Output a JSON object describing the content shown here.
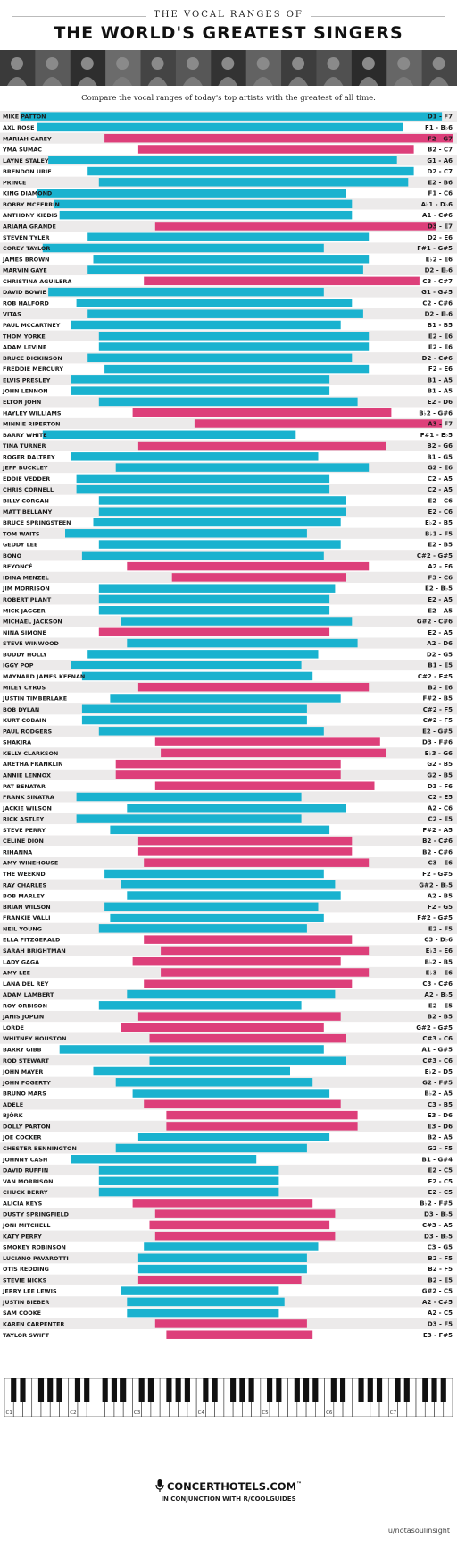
{
  "header": {
    "pre_title": "THE VOCAL RANGES OF",
    "title": "THE WORLD'S GREATEST SINGERS",
    "subtitle": "Compare the vocal ranges of today's top artists with the greatest of all time."
  },
  "colors": {
    "male": "#1ab2cf",
    "female": "#dd3f7a",
    "row_odd": "#eceaea",
    "row_even": "#ffffff",
    "text": "#1a1a1a"
  },
  "chart_data": {
    "type": "range-bar",
    "axis": {
      "min": "C1",
      "max": "C8",
      "octave_labels": [
        "C1",
        "C2",
        "C3",
        "C4",
        "C5",
        "C6",
        "C7"
      ]
    },
    "series": [
      {
        "name": "male",
        "color": "#1ab2cf"
      },
      {
        "name": "female",
        "color": "#dd3f7a"
      }
    ],
    "singers": [
      {
        "name": "MIKE PATTON",
        "low": "D1",
        "high": "F7",
        "low_semi": 2,
        "high_semi": 77,
        "sex": "male"
      },
      {
        "name": "AXL ROSE",
        "low": "F1",
        "high": "B♭6",
        "low_semi": 5,
        "high_semi": 70,
        "sex": "male"
      },
      {
        "name": "MARIAH CAREY",
        "low": "F2",
        "high": "G7",
        "low_semi": 17,
        "high_semi": 79,
        "sex": "female"
      },
      {
        "name": "YMA SUMAC",
        "low": "B2",
        "high": "C7",
        "low_semi": 23,
        "high_semi": 72,
        "sex": "female"
      },
      {
        "name": "LAYNE STALEY",
        "low": "G1",
        "high": "A6",
        "low_semi": 7,
        "high_semi": 69,
        "sex": "male"
      },
      {
        "name": "BRENDON URIE",
        "low": "D2",
        "high": "C7",
        "low_semi": 14,
        "high_semi": 72,
        "sex": "male"
      },
      {
        "name": "PRINCE",
        "low": "E2",
        "high": "B6",
        "low_semi": 16,
        "high_semi": 71,
        "sex": "male"
      },
      {
        "name": "KING DIAMOND",
        "low": "F1",
        "high": "C6",
        "low_semi": 5,
        "high_semi": 60,
        "sex": "male"
      },
      {
        "name": "BOBBY MCFERRIN",
        "low": "A♭1",
        "high": "D♭6",
        "low_semi": 8,
        "high_semi": 61,
        "sex": "male"
      },
      {
        "name": "ANTHONY KIEDIS",
        "low": "A1",
        "high": "C#6",
        "low_semi": 9,
        "high_semi": 61,
        "sex": "male"
      },
      {
        "name": "ARIANA GRANDE",
        "low": "D3",
        "high": "E7",
        "low_semi": 26,
        "high_semi": 76,
        "sex": "female"
      },
      {
        "name": "STEVEN TYLER",
        "low": "D2",
        "high": "E6",
        "low_semi": 14,
        "high_semi": 64,
        "sex": "male"
      },
      {
        "name": "COREY TAYLOR",
        "low": "F#1",
        "high": "G#5",
        "low_semi": 6,
        "high_semi": 56,
        "sex": "male"
      },
      {
        "name": "JAMES BROWN",
        "low": "E♭2",
        "high": "E6",
        "low_semi": 15,
        "high_semi": 64,
        "sex": "male"
      },
      {
        "name": "MARVIN GAYE",
        "low": "D2",
        "high": "E♭6",
        "low_semi": 14,
        "high_semi": 63,
        "sex": "male"
      },
      {
        "name": "CHRISTINA AGUILERA",
        "low": "C3",
        "high": "C#7",
        "low_semi": 24,
        "high_semi": 73,
        "sex": "female"
      },
      {
        "name": "DAVID BOWIE",
        "low": "G1",
        "high": "G#5",
        "low_semi": 7,
        "high_semi": 56,
        "sex": "male"
      },
      {
        "name": "ROB HALFORD",
        "low": "C2",
        "high": "C#6",
        "low_semi": 12,
        "high_semi": 61,
        "sex": "male"
      },
      {
        "name": "VITAS",
        "low": "D2",
        "high": "E♭6",
        "low_semi": 14,
        "high_semi": 63,
        "sex": "male"
      },
      {
        "name": "PAUL MCCARTNEY",
        "low": "B1",
        "high": "B5",
        "low_semi": 11,
        "high_semi": 59,
        "sex": "male"
      },
      {
        "name": "THOM YORKE",
        "low": "E2",
        "high": "E6",
        "low_semi": 16,
        "high_semi": 64,
        "sex": "male"
      },
      {
        "name": "ADAM LEVINE",
        "low": "E2",
        "high": "E6",
        "low_semi": 16,
        "high_semi": 64,
        "sex": "male"
      },
      {
        "name": "BRUCE DICKINSON",
        "low": "D2",
        "high": "C#6",
        "low_semi": 14,
        "high_semi": 61,
        "sex": "male"
      },
      {
        "name": "FREDDIE MERCURY",
        "low": "F2",
        "high": "E6",
        "low_semi": 17,
        "high_semi": 64,
        "sex": "male"
      },
      {
        "name": "ELVIS PRESLEY",
        "low": "B1",
        "high": "A5",
        "low_semi": 11,
        "high_semi": 57,
        "sex": "male"
      },
      {
        "name": "JOHN LENNON",
        "low": "B1",
        "high": "A5",
        "low_semi": 11,
        "high_semi": 57,
        "sex": "male"
      },
      {
        "name": "ELTON JOHN",
        "low": "E2",
        "high": "D6",
        "low_semi": 16,
        "high_semi": 62,
        "sex": "male"
      },
      {
        "name": "HAYLEY WILLIAMS",
        "low": "B♭2",
        "high": "G#6",
        "low_semi": 22,
        "high_semi": 68,
        "sex": "female"
      },
      {
        "name": "MINNIE RIPERTON",
        "low": "A3",
        "high": "F7",
        "low_semi": 33,
        "high_semi": 77,
        "sex": "female"
      },
      {
        "name": "BARRY WHITE",
        "low": "F#1",
        "high": "E♭5",
        "low_semi": 6,
        "high_semi": 51,
        "sex": "male"
      },
      {
        "name": "TINA TURNER",
        "low": "B2",
        "high": "G6",
        "low_semi": 23,
        "high_semi": 67,
        "sex": "female"
      },
      {
        "name": "ROGER DALTREY",
        "low": "B1",
        "high": "G5",
        "low_semi": 11,
        "high_semi": 55,
        "sex": "male"
      },
      {
        "name": "JEFF BUCKLEY",
        "low": "G2",
        "high": "E6",
        "low_semi": 19,
        "high_semi": 64,
        "sex": "male"
      },
      {
        "name": "EDDIE VEDDER",
        "low": "C2",
        "high": "A5",
        "low_semi": 12,
        "high_semi": 57,
        "sex": "male"
      },
      {
        "name": "CHRIS CORNELL",
        "low": "C2",
        "high": "A5",
        "low_semi": 12,
        "high_semi": 57,
        "sex": "male"
      },
      {
        "name": "BILLY CORGAN",
        "low": "E2",
        "high": "C6",
        "low_semi": 16,
        "high_semi": 60,
        "sex": "male"
      },
      {
        "name": "MATT BELLAMY",
        "low": "E2",
        "high": "C6",
        "low_semi": 16,
        "high_semi": 60,
        "sex": "male"
      },
      {
        "name": "BRUCE SPRINGSTEEN",
        "low": "E♭2",
        "high": "B5",
        "low_semi": 15,
        "high_semi": 59,
        "sex": "male"
      },
      {
        "name": "TOM WAITS",
        "low": "B♭1",
        "high": "F5",
        "low_semi": 10,
        "high_semi": 53,
        "sex": "male"
      },
      {
        "name": "GEDDY LEE",
        "low": "E2",
        "high": "B5",
        "low_semi": 16,
        "high_semi": 59,
        "sex": "male"
      },
      {
        "name": "BONO",
        "low": "C#2",
        "high": "G#5",
        "low_semi": 13,
        "high_semi": 56,
        "sex": "male"
      },
      {
        "name": "BEYONCÉ",
        "low": "A2",
        "high": "E6",
        "low_semi": 21,
        "high_semi": 64,
        "sex": "female"
      },
      {
        "name": "IDINA MENZEL",
        "low": "F3",
        "high": "C6",
        "low_semi": 29,
        "high_semi": 60,
        "sex": "female"
      },
      {
        "name": "JIM MORRISON",
        "low": "E2",
        "high": "B♭5",
        "low_semi": 16,
        "high_semi": 58,
        "sex": "male"
      },
      {
        "name": "ROBERT PLANT",
        "low": "E2",
        "high": "A5",
        "low_semi": 16,
        "high_semi": 57,
        "sex": "male"
      },
      {
        "name": "MICK JAGGER",
        "low": "E2",
        "high": "A5",
        "low_semi": 16,
        "high_semi": 57,
        "sex": "male"
      },
      {
        "name": "MICHAEL JACKSON",
        "low": "G#2",
        "high": "C#6",
        "low_semi": 20,
        "high_semi": 61,
        "sex": "male"
      },
      {
        "name": "NINA SIMONE",
        "low": "E2",
        "high": "A5",
        "low_semi": 16,
        "high_semi": 57,
        "sex": "female"
      },
      {
        "name": "STEVE WINWOOD",
        "low": "A2",
        "high": "D6",
        "low_semi": 21,
        "high_semi": 62,
        "sex": "male"
      },
      {
        "name": "BUDDY HOLLY",
        "low": "D2",
        "high": "G5",
        "low_semi": 14,
        "high_semi": 55,
        "sex": "male"
      },
      {
        "name": "IGGY POP",
        "low": "B1",
        "high": "E5",
        "low_semi": 11,
        "high_semi": 52,
        "sex": "male"
      },
      {
        "name": "MAYNARD JAMES KEENAN",
        "low": "C#2",
        "high": "F#5",
        "low_semi": 13,
        "high_semi": 54,
        "sex": "male"
      },
      {
        "name": "MILEY CYRUS",
        "low": "B2",
        "high": "E6",
        "low_semi": 23,
        "high_semi": 64,
        "sex": "female"
      },
      {
        "name": "JUSTIN TIMBERLAKE",
        "low": "F#2",
        "high": "B5",
        "low_semi": 18,
        "high_semi": 59,
        "sex": "male"
      },
      {
        "name": "BOB DYLAN",
        "low": "C#2",
        "high": "F5",
        "low_semi": 13,
        "high_semi": 53,
        "sex": "male"
      },
      {
        "name": "KURT COBAIN",
        "low": "C#2",
        "high": "F5",
        "low_semi": 13,
        "high_semi": 53,
        "sex": "male"
      },
      {
        "name": "PAUL RODGERS",
        "low": "E2",
        "high": "G#5",
        "low_semi": 16,
        "high_semi": 56,
        "sex": "male"
      },
      {
        "name": "SHAKIRA",
        "low": "D3",
        "high": "F#6",
        "low_semi": 26,
        "high_semi": 66,
        "sex": "female"
      },
      {
        "name": "KELLY CLARKSON",
        "low": "E♭3",
        "high": "G6",
        "low_semi": 27,
        "high_semi": 67,
        "sex": "female"
      },
      {
        "name": "ARETHA FRANKLIN",
        "low": "G2",
        "high": "B5",
        "low_semi": 19,
        "high_semi": 59,
        "sex": "female"
      },
      {
        "name": "ANNIE LENNOX",
        "low": "G2",
        "high": "B5",
        "low_semi": 19,
        "high_semi": 59,
        "sex": "female"
      },
      {
        "name": "PAT BENATAR",
        "low": "D3",
        "high": "F6",
        "low_semi": 26,
        "high_semi": 65,
        "sex": "female"
      },
      {
        "name": "FRANK SINATRA",
        "low": "C2",
        "high": "E5",
        "low_semi": 12,
        "high_semi": 52,
        "sex": "male"
      },
      {
        "name": "JACKIE WILSON",
        "low": "A2",
        "high": "C6",
        "low_semi": 21,
        "high_semi": 60,
        "sex": "male"
      },
      {
        "name": "RICK ASTLEY",
        "low": "C2",
        "high": "E5",
        "low_semi": 12,
        "high_semi": 52,
        "sex": "male"
      },
      {
        "name": "STEVE PERRY",
        "low": "F#2",
        "high": "A5",
        "low_semi": 18,
        "high_semi": 57,
        "sex": "male"
      },
      {
        "name": "CELINE DION",
        "low": "B2",
        "high": "C#6",
        "low_semi": 23,
        "high_semi": 61,
        "sex": "female"
      },
      {
        "name": "RIHANNA",
        "low": "B2",
        "high": "C#6",
        "low_semi": 23,
        "high_semi": 61,
        "sex": "female"
      },
      {
        "name": "AMY WINEHOUSE",
        "low": "C3",
        "high": "E6",
        "low_semi": 24,
        "high_semi": 64,
        "sex": "female"
      },
      {
        "name": "THE WEEKND",
        "low": "F2",
        "high": "G#5",
        "low_semi": 17,
        "high_semi": 56,
        "sex": "male"
      },
      {
        "name": "RAY CHARLES",
        "low": "G#2",
        "high": "B♭5",
        "low_semi": 20,
        "high_semi": 58,
        "sex": "male"
      },
      {
        "name": "BOB MARLEY",
        "low": "A2",
        "high": "B5",
        "low_semi": 21,
        "high_semi": 59,
        "sex": "male"
      },
      {
        "name": "BRIAN WILSON",
        "low": "F2",
        "high": "G5",
        "low_semi": 17,
        "high_semi": 55,
        "sex": "male"
      },
      {
        "name": "FRANKIE VALLI",
        "low": "F#2",
        "high": "G#5",
        "low_semi": 18,
        "high_semi": 56,
        "sex": "male"
      },
      {
        "name": "NEIL YOUNG",
        "low": "E2",
        "high": "F5",
        "low_semi": 16,
        "high_semi": 53,
        "sex": "male"
      },
      {
        "name": "ELLA FITZGERALD",
        "low": "C3",
        "high": "D♭6",
        "low_semi": 24,
        "high_semi": 61,
        "sex": "female"
      },
      {
        "name": "SARAH BRIGHTMAN",
        "low": "E♭3",
        "high": "E6",
        "low_semi": 27,
        "high_semi": 64,
        "sex": "female"
      },
      {
        "name": "LADY GAGA",
        "low": "B♭2",
        "high": "B5",
        "low_semi": 22,
        "high_semi": 59,
        "sex": "female"
      },
      {
        "name": "AMY LEE",
        "low": "E♭3",
        "high": "E6",
        "low_semi": 27,
        "high_semi": 64,
        "sex": "female"
      },
      {
        "name": "LANA DEL REY",
        "low": "C3",
        "high": "C#6",
        "low_semi": 24,
        "high_semi": 61,
        "sex": "female"
      },
      {
        "name": "ADAM LAMBERT",
        "low": "A2",
        "high": "B♭5",
        "low_semi": 21,
        "high_semi": 58,
        "sex": "male"
      },
      {
        "name": "ROY ORBISON",
        "low": "E2",
        "high": "E5",
        "low_semi": 16,
        "high_semi": 52,
        "sex": "male"
      },
      {
        "name": "JANIS JOPLIN",
        "low": "B2",
        "high": "B5",
        "low_semi": 23,
        "high_semi": 59,
        "sex": "female"
      },
      {
        "name": "LORDE",
        "low": "G#2",
        "high": "G#5",
        "low_semi": 20,
        "high_semi": 56,
        "sex": "female"
      },
      {
        "name": "WHITNEY HOUSTON",
        "low": "C#3",
        "high": "C6",
        "low_semi": 25,
        "high_semi": 60,
        "sex": "female"
      },
      {
        "name": "BARRY GIBB",
        "low": "A1",
        "high": "G#5",
        "low_semi": 9,
        "high_semi": 56,
        "sex": "male"
      },
      {
        "name": "ROD STEWART",
        "low": "C#3",
        "high": "C6",
        "low_semi": 25,
        "high_semi": 60,
        "sex": "male"
      },
      {
        "name": "JOHN MAYER",
        "low": "E♭2",
        "high": "D5",
        "low_semi": 15,
        "high_semi": 50,
        "sex": "male"
      },
      {
        "name": "JOHN FOGERTY",
        "low": "G2",
        "high": "F#5",
        "low_semi": 19,
        "high_semi": 54,
        "sex": "male"
      },
      {
        "name": "BRUNO MARS",
        "low": "B♭2",
        "high": "A5",
        "low_semi": 22,
        "high_semi": 57,
        "sex": "male"
      },
      {
        "name": "ADELE",
        "low": "C3",
        "high": "B5",
        "low_semi": 24,
        "high_semi": 59,
        "sex": "female"
      },
      {
        "name": "BJÖRK",
        "low": "E3",
        "high": "D6",
        "low_semi": 28,
        "high_semi": 62,
        "sex": "female"
      },
      {
        "name": "DOLLY PARTON",
        "low": "E3",
        "high": "D6",
        "low_semi": 28,
        "high_semi": 62,
        "sex": "female"
      },
      {
        "name": "JOE COCKER",
        "low": "B2",
        "high": "A5",
        "low_semi": 23,
        "high_semi": 57,
        "sex": "male"
      },
      {
        "name": "CHESTER BENNINGTON",
        "low": "G2",
        "high": "F5",
        "low_semi": 19,
        "high_semi": 53,
        "sex": "male"
      },
      {
        "name": "JOHNNY CASH",
        "low": "B1",
        "high": "G#4",
        "low_semi": 11,
        "high_semi": 44,
        "sex": "male"
      },
      {
        "name": "DAVID RUFFIN",
        "low": "E2",
        "high": "C5",
        "low_semi": 16,
        "high_semi": 48,
        "sex": "male"
      },
      {
        "name": "VAN MORRISON",
        "low": "E2",
        "high": "C5",
        "low_semi": 16,
        "high_semi": 48,
        "sex": "male"
      },
      {
        "name": "CHUCK BERRY",
        "low": "E2",
        "high": "C5",
        "low_semi": 16,
        "high_semi": 48,
        "sex": "male"
      },
      {
        "name": "ALICIA KEYS",
        "low": "B♭2",
        "high": "F#5",
        "low_semi": 22,
        "high_semi": 54,
        "sex": "female"
      },
      {
        "name": "DUSTY SPRINGFIELD",
        "low": "D3",
        "high": "B♭5",
        "low_semi": 26,
        "high_semi": 58,
        "sex": "female"
      },
      {
        "name": "JONI MITCHELL",
        "low": "C#3",
        "high": "A5",
        "low_semi": 25,
        "high_semi": 57,
        "sex": "female"
      },
      {
        "name": "KATY PERRY",
        "low": "D3",
        "high": "B♭5",
        "low_semi": 26,
        "high_semi": 58,
        "sex": "female"
      },
      {
        "name": "SMOKEY ROBINSON",
        "low": "C3",
        "high": "G5",
        "low_semi": 24,
        "high_semi": 55,
        "sex": "male"
      },
      {
        "name": "LUCIANO PAVAROTTI",
        "low": "B2",
        "high": "F5",
        "low_semi": 23,
        "high_semi": 53,
        "sex": "male"
      },
      {
        "name": "OTIS REDDING",
        "low": "B2",
        "high": "F5",
        "low_semi": 23,
        "high_semi": 53,
        "sex": "male"
      },
      {
        "name": "STEVIE NICKS",
        "low": "B2",
        "high": "E5",
        "low_semi": 23,
        "high_semi": 52,
        "sex": "female"
      },
      {
        "name": "JERRY LEE LEWIS",
        "low": "G#2",
        "high": "C5",
        "low_semi": 20,
        "high_semi": 48,
        "sex": "male"
      },
      {
        "name": "JUSTIN BIEBER",
        "low": "A2",
        "high": "C#5",
        "low_semi": 21,
        "high_semi": 49,
        "sex": "male"
      },
      {
        "name": "SAM COOKE",
        "low": "A2",
        "high": "C5",
        "low_semi": 21,
        "high_semi": 48,
        "sex": "male"
      },
      {
        "name": "KAREN CARPENTER",
        "low": "D3",
        "high": "F5",
        "low_semi": 26,
        "high_semi": 53,
        "sex": "female"
      },
      {
        "name": "TAYLOR SWIFT",
        "low": "E3",
        "high": "F#5",
        "low_semi": 28,
        "high_semi": 54,
        "sex": "female"
      }
    ]
  },
  "footer": {
    "brand": "CONCERTHOTELS.COM",
    "brand_tm": "™",
    "tagline": "IN CONJUNCTION WITH R/COOLGUIDES",
    "credit": "u/notasoulinsight"
  }
}
